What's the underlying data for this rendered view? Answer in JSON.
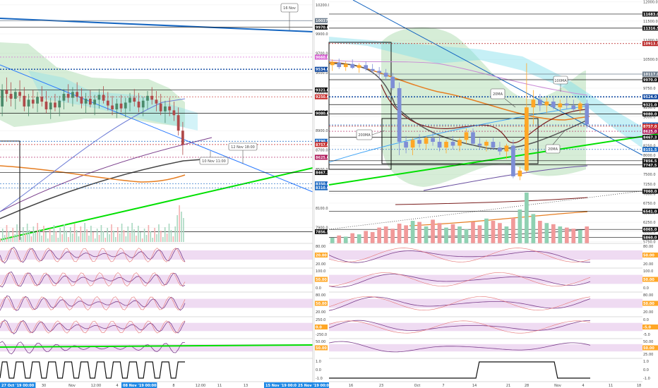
{
  "chart_data": [
    {
      "type": "candlestick",
      "panel": "left",
      "y_ticks": [
        "10200.0",
        "9900.0",
        "9700.0",
        "9500.0",
        "9300.0",
        "9100.0",
        "8900.0",
        "8700.0",
        "8500.0",
        "8300.0",
        "8100.0",
        "7900.0"
      ],
      "ylim": [
        7750,
        10250
      ],
      "x_ticks": [
        "27 Oct '19 00:00",
        "30",
        "Nov",
        "12:00",
        "4",
        "08 Nov '19 00:00",
        "8",
        "12:00",
        "11",
        "13",
        "15 Nov '19 00:00",
        "25 Nov '19 00:00"
      ],
      "price_tags": [
        {
          "label": "10037.0",
          "value": 10037,
          "color": "#6b7b8c"
        },
        {
          "label": "9970.0",
          "value": 9970,
          "color": "#111111"
        },
        {
          "label": "9660.0",
          "value": 9660,
          "color": "#d65dd2"
        },
        {
          "label": "9534.0",
          "value": 9534,
          "color": "#0d47a1"
        },
        {
          "label": "9321.0",
          "value": 9321,
          "color": "#111111"
        },
        {
          "label": "9250.0",
          "value": 9250,
          "color": "#c62828"
        },
        {
          "label": "9080.0",
          "value": 9080,
          "color": "#111111"
        },
        {
          "label": "8790.5",
          "value": 8790.5,
          "color": "#1565c0"
        },
        {
          "label": "8757.0",
          "value": 8757,
          "color": "#c62828"
        },
        {
          "label": "8625.0",
          "value": 8625,
          "color": "#ad1457"
        },
        {
          "label": "8467.3",
          "value": 8467.3,
          "color": "#111111"
        },
        {
          "label": "8350.0",
          "value": 8350,
          "color": "#1565c0"
        },
        {
          "label": "8310.0",
          "value": 8310,
          "color": "#1565c0"
        },
        {
          "label": "7856.5",
          "value": 7856.5,
          "color": "#111111"
        }
      ],
      "annotations": [
        "16 Nov",
        "12 Nov 18:00",
        "10 Nov 11:00"
      ],
      "ohlc": [
        [
          9150,
          9380,
          9050,
          9320
        ],
        [
          9320,
          9450,
          9200,
          9280
        ],
        [
          9280,
          9400,
          9150,
          9230
        ],
        [
          9230,
          9340,
          9120,
          9300
        ],
        [
          9300,
          9420,
          9200,
          9260
        ],
        [
          9260,
          9350,
          9100,
          9150
        ],
        [
          9150,
          9280,
          9050,
          9220
        ],
        [
          9220,
          9320,
          9130,
          9180
        ],
        [
          9180,
          9300,
          9090,
          9250
        ],
        [
          9250,
          9360,
          9150,
          9200
        ],
        [
          9200,
          9310,
          9080,
          9120
        ],
        [
          9120,
          9240,
          9020,
          9190
        ],
        [
          9190,
          9280,
          9100,
          9140
        ],
        [
          9140,
          9260,
          9050,
          9210
        ],
        [
          9210,
          9330,
          9120,
          9280
        ],
        [
          9280,
          9380,
          9190,
          9240
        ],
        [
          9240,
          9350,
          9150,
          9300
        ],
        [
          9300,
          9400,
          9200,
          9250
        ],
        [
          9250,
          9340,
          9130,
          9180
        ],
        [
          9180,
          9290,
          9080,
          9230
        ],
        [
          9230,
          9320,
          9140,
          9170
        ],
        [
          9170,
          9270,
          9060,
          9220
        ],
        [
          9220,
          9330,
          9130,
          9270
        ],
        [
          9270,
          9360,
          9180,
          9210
        ],
        [
          9210,
          9300,
          9110,
          9160
        ],
        [
          9160,
          9260,
          9060,
          9120
        ],
        [
          9120,
          9230,
          9030,
          9180
        ],
        [
          9180,
          9270,
          9090,
          9130
        ],
        [
          9130,
          9240,
          9040,
          9190
        ],
        [
          9190,
          9290,
          9100,
          9240
        ],
        [
          9240,
          9330,
          9150,
          9200
        ],
        [
          9200,
          9290,
          9090,
          9140
        ],
        [
          9140,
          9250,
          9050,
          9210
        ],
        [
          9210,
          9310,
          9120,
          9260
        ],
        [
          9260,
          9350,
          9170,
          9220
        ],
        [
          9220,
          9310,
          9100,
          9180
        ],
        [
          9180,
          9280,
          9060,
          9100
        ],
        [
          9100,
          9210,
          8980,
          9150
        ],
        [
          9150,
          9240,
          9050,
          9110
        ],
        [
          9110,
          9200,
          9000,
          9060
        ],
        [
          9060,
          9140,
          8850,
          8900
        ],
        [
          8900,
          8990,
          8650,
          8757
        ]
      ]
    },
    {
      "type": "candlestick",
      "panel": "right",
      "y_ticks": [
        "12000.0",
        "11500.0",
        "11000.0",
        "10500.0",
        "10000.0",
        "9750.0",
        "9500.0",
        "9250.0",
        "9000.0",
        "8750.0",
        "8500.0",
        "8250.0",
        "8000.0",
        "7750.0",
        "7500.0",
        "7250.0",
        "7000.0",
        "6750.0",
        "6500.0",
        "6250.0",
        "6000.0",
        "5750.0"
      ],
      "ylim": [
        5700,
        12050
      ],
      "x_ticks": [
        "16",
        "23",
        "Oct",
        "7",
        "14",
        "21",
        "28",
        "Nov",
        "4",
        "11",
        "18"
      ],
      "price_tags": [
        {
          "label": "11683.0",
          "value": 11683,
          "color": "#111111"
        },
        {
          "label": "11316.5",
          "value": 11316.5,
          "color": "#111111"
        },
        {
          "label": "10913.5",
          "value": 10913.5,
          "color": "#b71c1c"
        },
        {
          "label": "10117.0",
          "value": 10117,
          "color": "#6b7b8c"
        },
        {
          "label": "9970.0",
          "value": 9970,
          "color": "#111111"
        },
        {
          "label": "9524.0",
          "value": 9524,
          "color": "#0d47a1"
        },
        {
          "label": "9321.0",
          "value": 9321,
          "color": "#111111"
        },
        {
          "label": "9080.0",
          "value": 9080,
          "color": "#111111"
        },
        {
          "label": "8790.5",
          "value": 8790.5,
          "color": "#1565c0"
        },
        {
          "label": "8757.0",
          "value": 8757,
          "color": "#c62828"
        },
        {
          "label": "8625.0",
          "value": 8625,
          "color": "#ad1457"
        },
        {
          "label": "8467.3",
          "value": 8467.3,
          "color": "#111111"
        },
        {
          "label": "8151.5",
          "value": 8151.5,
          "color": "#1565c0"
        },
        {
          "label": "7856.5",
          "value": 7856.5,
          "color": "#111111"
        },
        {
          "label": "7747.5",
          "value": 7747.5,
          "color": "#111111"
        },
        {
          "label": "7060.0",
          "value": 7060,
          "color": "#111111"
        },
        {
          "label": "6541.0",
          "value": 6541,
          "color": "#111111"
        },
        {
          "label": "6065.0",
          "value": 6065,
          "color": "#111111"
        },
        {
          "label": "5860.0",
          "value": 5860,
          "color": "#111111"
        }
      ],
      "annotations": [
        "100MA",
        "20MA",
        "200MA",
        "20MA"
      ],
      "ohlc": [
        [
          10350,
          10500,
          10200,
          10420
        ],
        [
          10420,
          10520,
          10250,
          10300
        ],
        [
          10300,
          10450,
          10200,
          10380
        ],
        [
          10380,
          10500,
          10250,
          10280
        ],
        [
          10280,
          10400,
          10150,
          10350
        ],
        [
          10350,
          10450,
          10200,
          10250
        ],
        [
          10250,
          10380,
          10150,
          10200
        ],
        [
          10200,
          10300,
          10000,
          10150
        ],
        [
          10150,
          10250,
          9950,
          10050
        ],
        [
          10050,
          10150,
          9700,
          9750
        ],
        [
          9750,
          9900,
          8000,
          8350
        ],
        [
          8350,
          8500,
          8050,
          8200
        ],
        [
          8200,
          8450,
          8000,
          8400
        ],
        [
          8400,
          8550,
          8200,
          8300
        ],
        [
          8300,
          8500,
          8150,
          8450
        ],
        [
          8450,
          8600,
          8250,
          8350
        ],
        [
          8350,
          8500,
          8100,
          8200
        ],
        [
          8200,
          8400,
          8050,
          8350
        ],
        [
          8350,
          8500,
          8150,
          8250
        ],
        [
          8250,
          8450,
          8100,
          8400
        ],
        [
          8400,
          8700,
          8300,
          8600
        ],
        [
          8600,
          8700,
          8250,
          8300
        ],
        [
          8300,
          8450,
          8150,
          8250
        ],
        [
          8250,
          8400,
          8100,
          8350
        ],
        [
          8350,
          8450,
          8150,
          8200
        ],
        [
          8200,
          8350,
          8000,
          8100
        ],
        [
          8100,
          8300,
          7900,
          8250
        ],
        [
          8250,
          8400,
          7400,
          7450
        ],
        [
          7450,
          7700,
          7350,
          7600
        ],
        [
          7600,
          10400,
          7550,
          9250
        ],
        [
          9250,
          9700,
          8800,
          9450
        ],
        [
          9450,
          9600,
          9150,
          9300
        ],
        [
          9300,
          9500,
          9100,
          9400
        ],
        [
          9400,
          9550,
          9200,
          9250
        ],
        [
          9250,
          9450,
          9150,
          9350
        ],
        [
          9350,
          9500,
          9200,
          9300
        ],
        [
          9300,
          9450,
          9150,
          9200
        ],
        [
          9200,
          9400,
          9100,
          9350
        ],
        [
          9350,
          9450,
          8700,
          8800
        ]
      ],
      "volume": [
        10,
        14,
        12,
        18,
        16,
        22,
        20,
        28,
        30,
        26,
        35,
        32,
        40,
        38,
        30,
        42,
        36,
        28,
        34,
        30,
        25,
        38,
        32,
        44,
        40,
        36,
        30,
        45,
        60,
        90,
        52,
        40,
        36,
        34,
        30,
        28,
        26,
        24,
        30
      ]
    }
  ],
  "indicators_left": {
    "ticks": [
      [
        "80.00",
        "50.00",
        "20.00"
      ],
      [
        "100.0",
        "0.0"
      ],
      [
        "80.00",
        "50.00",
        "20.00"
      ],
      [
        "250.0",
        "0.0",
        "-250.0"
      ],
      [
        "50.00"
      ],
      [
        "1.0",
        "0.0",
        "-1.0"
      ]
    ],
    "tags": [
      "20.00",
      "50.00",
      "50.00",
      "0.0",
      "50.00",
      ""
    ]
  },
  "indicators_right": {
    "ticks": [
      [
        "80.00",
        "50.00",
        "20.00"
      ],
      [
        "100.0",
        "0.0"
      ],
      [
        "80.00",
        "50.00",
        "20.00"
      ],
      [
        "0.0",
        "-5.0"
      ],
      [
        "50.00",
        "25.00"
      ],
      [
        "1.0",
        "0.0",
        "-1.0"
      ]
    ],
    "tags": [
      "50.00",
      "50.00",
      "50.00",
      "-5.0",
      "50.00",
      ""
    ]
  }
}
